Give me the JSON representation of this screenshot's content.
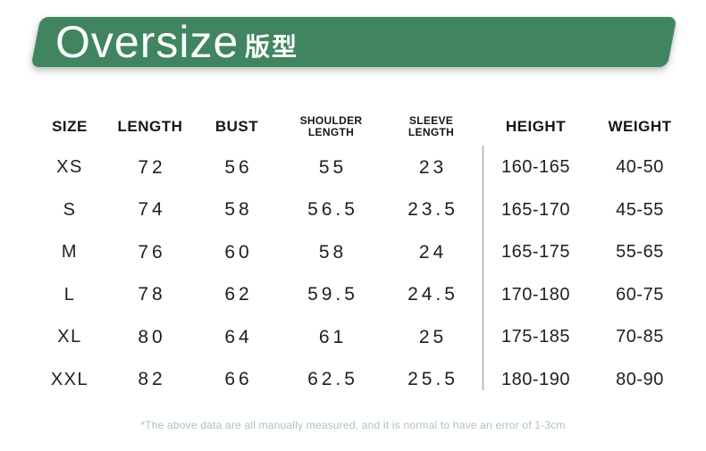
{
  "banner": {
    "title": "Oversize",
    "subtitle": "版型",
    "bg_color": "#40855f",
    "text_color": "#ffffff"
  },
  "ui": {
    "headers": {
      "size": "SIZE",
      "length": "LENGTH",
      "bust": "BUST",
      "shoulder_l1": "SHOULDER",
      "shoulder_l2": "LENGTH",
      "sleeve_l1": "SLEEVE",
      "sleeve_l2": "LENGTH",
      "height": "HEIGHT",
      "weight": "WEIGHT"
    }
  },
  "chart_data": {
    "type": "table",
    "title": "Oversize 版型",
    "columns": [
      "SIZE",
      "LENGTH",
      "BUST",
      "SHOULDER LENGTH",
      "SLEEVE LENGTH",
      "HEIGHT",
      "WEIGHT"
    ],
    "rows": [
      [
        "XS",
        "72",
        "56",
        "55",
        "23",
        "160-165",
        "40-50"
      ],
      [
        "S",
        "74",
        "58",
        "56.5",
        "23.5",
        "165-170",
        "45-55"
      ],
      [
        "M",
        "76",
        "60",
        "58",
        "24",
        "165-175",
        "55-65"
      ],
      [
        "L",
        "78",
        "62",
        "59.5",
        "24.5",
        "170-180",
        "60-75"
      ],
      [
        "XL",
        "80",
        "64",
        "61",
        "25",
        "175-185",
        "70-85"
      ],
      [
        "XXL",
        "82",
        "66",
        "62.5",
        "25.5",
        "180-190",
        "80-90"
      ]
    ],
    "footnote": "*The above data are all manually measured, and it is normal to have an error of 1-3cm",
    "colors": {
      "banner_green": "#40855f",
      "footnote_green": "#abc5b6",
      "divider_gray": "#909090",
      "text": "#1f1f1f"
    }
  }
}
